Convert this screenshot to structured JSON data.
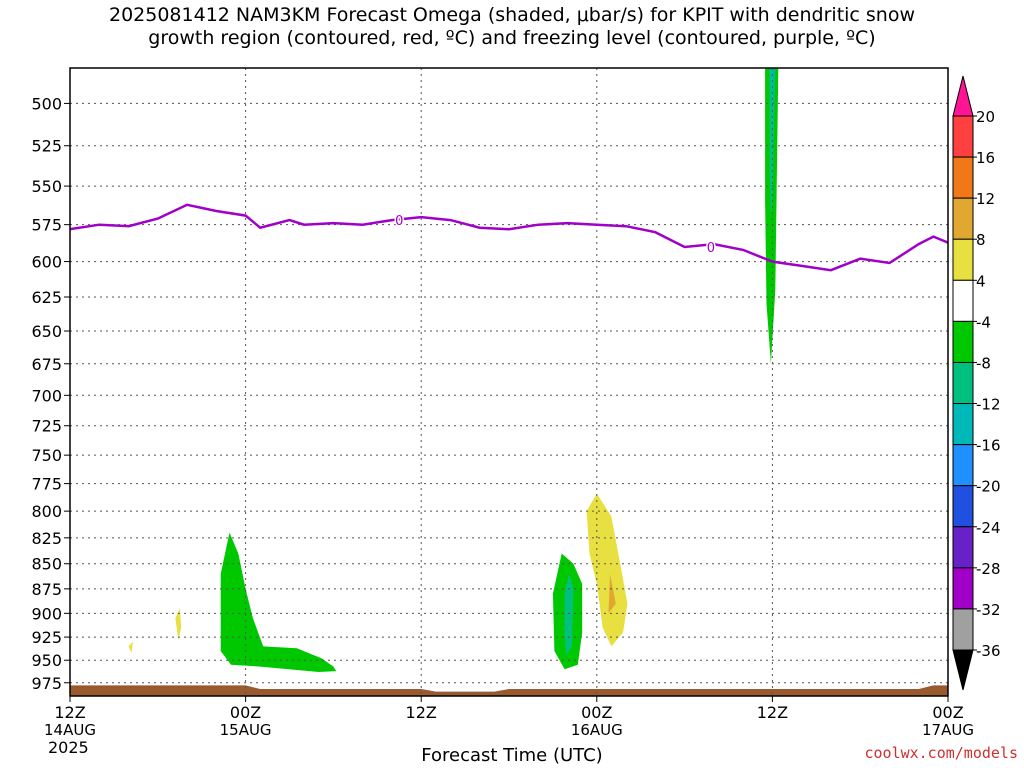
{
  "title_line1": "2025081412 NAM3KM Forecast Omega (shaded, μbar/s) for KPIT with dendritic snow",
  "title_line2": "growth region (contoured, red, ºC) and freezing level (contoured, purple, ºC)",
  "credit": "coolwx.com/models",
  "year": "2025",
  "chart_data": {
    "type": "contour",
    "title": "2025081412 NAM3KM Forecast Omega (shaded, μbar/s) for KPIT with dendritic snow growth region (contoured, red, ºC) and freezing level (contoured, purple, ºC)",
    "xlabel": "Forecast Time (UTC)",
    "ylabel": "",
    "x_range_hours": [
      0,
      60
    ],
    "x_ticks": [
      {
        "hour": 0,
        "label": "12Z",
        "sub": "14AUG"
      },
      {
        "hour": 12,
        "label": "00Z",
        "sub": "15AUG"
      },
      {
        "hour": 24,
        "label": "12Z",
        "sub": ""
      },
      {
        "hour": 36,
        "label": "00Z",
        "sub": "16AUG"
      },
      {
        "hour": 48,
        "label": "12Z",
        "sub": ""
      },
      {
        "hour": 60,
        "label": "00Z",
        "sub": "17AUG"
      }
    ],
    "y_levels_hPa": [
      500,
      525,
      550,
      575,
      600,
      625,
      650,
      675,
      700,
      725,
      750,
      775,
      800,
      825,
      850,
      875,
      900,
      925,
      950,
      975
    ],
    "y_range_hPa": [
      480,
      990
    ],
    "grid": true,
    "colorbar": {
      "labels": [
        "20",
        "16",
        "12",
        "8",
        "4",
        "-4",
        "-8",
        "-12",
        "-16",
        "-20",
        "-24",
        "-28",
        "-32",
        "-36"
      ],
      "colors": [
        "#ff1493",
        "#ff4040",
        "#f07818",
        "#e0a830",
        "#e8e040",
        "#ffffff",
        "#00c800",
        "#00c080",
        "#00b8b8",
        "#1e90ff",
        "#2050e0",
        "#6820c8",
        "#a000c8",
        "#a0a0a0",
        "#000000"
      ]
    },
    "freezing_level": {
      "label": "0",
      "color": "#a000c8",
      "points": [
        [
          0,
          578
        ],
        [
          2,
          575
        ],
        [
          4,
          576
        ],
        [
          6,
          571
        ],
        [
          8,
          562
        ],
        [
          10,
          566
        ],
        [
          12,
          569
        ],
        [
          13,
          577
        ],
        [
          15,
          572
        ],
        [
          16,
          575
        ],
        [
          18,
          574
        ],
        [
          20,
          575
        ],
        [
          22,
          572
        ],
        [
          24,
          570
        ],
        [
          26,
          572
        ],
        [
          28,
          577
        ],
        [
          30,
          578
        ],
        [
          32,
          575
        ],
        [
          34,
          574
        ],
        [
          36,
          575
        ],
        [
          38,
          576
        ],
        [
          40,
          580
        ],
        [
          42,
          590
        ],
        [
          44,
          588
        ],
        [
          46,
          592
        ],
        [
          48,
          600
        ],
        [
          50,
          603
        ],
        [
          52,
          606
        ],
        [
          54,
          598
        ],
        [
          56,
          601
        ],
        [
          58,
          588
        ],
        [
          59,
          583
        ],
        [
          60,
          587
        ]
      ]
    },
    "omega_regions": [
      {
        "name": "omega -4 to -8",
        "value_range": [
          -8,
          -4
        ],
        "color": "#00c800",
        "polygon": [
          [
            10.3,
            860
          ],
          [
            10.9,
            820
          ],
          [
            11.5,
            840
          ],
          [
            12.0,
            875
          ],
          [
            12.5,
            905
          ],
          [
            13.2,
            935
          ],
          [
            15.5,
            937
          ],
          [
            17.2,
            948
          ],
          [
            18.0,
            957
          ],
          [
            18.2,
            962
          ],
          [
            17,
            963
          ],
          [
            13,
            957
          ],
          [
            11,
            955
          ],
          [
            10.3,
            940
          ]
        ]
      },
      {
        "name": "omega -4 to -8",
        "value_range": [
          -8,
          -4
        ],
        "color": "#00c800",
        "polygon": [
          [
            33.0,
            880
          ],
          [
            33.6,
            840
          ],
          [
            34.4,
            850
          ],
          [
            35.0,
            870
          ],
          [
            35.0,
            920
          ],
          [
            34.7,
            955
          ],
          [
            33.8,
            960
          ],
          [
            33.1,
            940
          ]
        ]
      },
      {
        "name": "omega -8 to -12",
        "value_range": [
          -12,
          -8
        ],
        "color": "#00c080",
        "polygon": [
          [
            33.8,
            880
          ],
          [
            34.1,
            860
          ],
          [
            34.4,
            875
          ],
          [
            34.3,
            935
          ],
          [
            33.9,
            945
          ],
          [
            33.8,
            920
          ]
        ]
      },
      {
        "name": "omega 4 to 8",
        "value_range": [
          4,
          8
        ],
        "color": "#e8e040",
        "polygon": [
          [
            35.3,
            800
          ],
          [
            36.0,
            784
          ],
          [
            37.0,
            805
          ],
          [
            37.6,
            850
          ],
          [
            38.1,
            890
          ],
          [
            37.8,
            920
          ],
          [
            37.0,
            935
          ],
          [
            36.4,
            915
          ],
          [
            36.0,
            870
          ],
          [
            35.5,
            840
          ]
        ]
      },
      {
        "name": "omega 8 to 12",
        "value_range": [
          8,
          12
        ],
        "color": "#e0a830",
        "polygon": [
          [
            36.9,
            860
          ],
          [
            37.3,
            890
          ],
          [
            36.8,
            900
          ]
        ]
      },
      {
        "name": "omega 4 to 8",
        "value_range": [
          4,
          8
        ],
        "color": "#e8e040",
        "polygon": [
          [
            7.2,
            905
          ],
          [
            7.5,
            895
          ],
          [
            7.6,
            915
          ],
          [
            7.4,
            928
          ]
        ]
      },
      {
        "name": "omega 4 to 8",
        "value_range": [
          4,
          8
        ],
        "color": "#e8e040",
        "polygon": [
          [
            4.0,
            935
          ],
          [
            4.3,
            930
          ],
          [
            4.2,
            942
          ]
        ]
      },
      {
        "name": "omega -4 to -8",
        "value_range": [
          -8,
          -4
        ],
        "color": "#00c800",
        "polygon": [
          [
            47.5,
            480
          ],
          [
            48.4,
            480
          ],
          [
            48.2,
            620
          ],
          [
            47.9,
            675
          ],
          [
            47.6,
            630
          ],
          [
            47.5,
            560
          ]
        ]
      },
      {
        "name": "omega -8 to -12",
        "value_range": [
          -12,
          -8
        ],
        "color": "#00c080",
        "polygon": [
          [
            47.8,
            480
          ],
          [
            48.2,
            480
          ],
          [
            48.0,
            560
          ],
          [
            47.9,
            570
          ],
          [
            47.8,
            540
          ]
        ]
      },
      {
        "name": "omega -12 to -16",
        "value_range": [
          -16,
          -12
        ],
        "color": "#00b8b8",
        "polygon": [
          [
            47.9,
            480
          ],
          [
            48.1,
            480
          ],
          [
            48.0,
            510
          ]
        ]
      }
    ],
    "terrain": {
      "color": "#9a5a30",
      "top_points": [
        [
          0,
          978
        ],
        [
          12,
          978
        ],
        [
          13,
          982
        ],
        [
          24,
          982
        ],
        [
          25,
          985
        ],
        [
          29,
          985
        ],
        [
          30,
          982
        ],
        [
          58,
          982
        ],
        [
          59,
          978
        ],
        [
          60,
          978
        ]
      ]
    }
  }
}
